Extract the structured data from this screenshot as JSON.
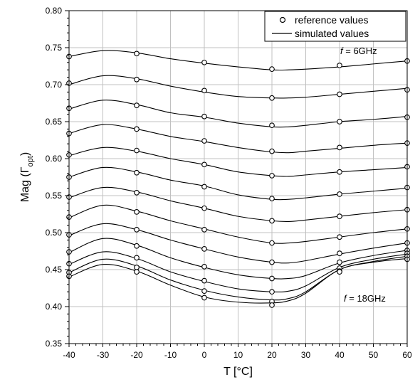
{
  "chart_data": {
    "type": "line",
    "xlabel": "T [°C]",
    "ylabel": "Mag (Γopt)",
    "ylabel_main": "Mag (Γ",
    "ylabel_sub": "opt",
    "ylabel_close": ")",
    "xlim": [
      -40,
      60
    ],
    "ylim": [
      0.35,
      0.8
    ],
    "xticks": [
      -40,
      -30,
      -20,
      -10,
      0,
      10,
      20,
      30,
      40,
      50,
      60
    ],
    "yticks": [
      0.35,
      0.4,
      0.45,
      0.5,
      0.55,
      0.6,
      0.65,
      0.7,
      0.75,
      0.8
    ],
    "xtick_labels": [
      "-40",
      "-30",
      "-20",
      "-10",
      "0",
      "10",
      "20",
      "30",
      "40",
      "50",
      "60"
    ],
    "ytick_labels": [
      "0.35",
      "0.40",
      "0.45",
      "0.50",
      "0.55",
      "0.60",
      "0.65",
      "0.70",
      "0.75",
      "0.80"
    ],
    "grid": true,
    "legend_position": "top-right",
    "legend": {
      "reference": "reference values",
      "simulated": "simulated values"
    },
    "annotations": {
      "top_f": "f",
      "top_rest": " = 6GHz",
      "bottom_f": "f",
      "bottom_rest": " = 18GHz"
    },
    "reference_x": [
      -40,
      -20,
      0,
      20,
      40,
      60
    ],
    "series": [
      {
        "sim_x": [
          -40,
          -30,
          -20,
          -10,
          0,
          10,
          20,
          25,
          30,
          40,
          50,
          60
        ],
        "sim_y": [
          0.738,
          0.746,
          0.743,
          0.735,
          0.729,
          0.724,
          0.72,
          0.72,
          0.721,
          0.724,
          0.728,
          0.732
        ],
        "ref_y": [
          0.738,
          0.742,
          0.73,
          0.721,
          0.726,
          0.732
        ]
      },
      {
        "sim_x": [
          -40,
          -30,
          -20,
          -10,
          0,
          10,
          20,
          25,
          30,
          40,
          50,
          60
        ],
        "sim_y": [
          0.7,
          0.712,
          0.708,
          0.698,
          0.69,
          0.684,
          0.682,
          0.682,
          0.683,
          0.687,
          0.691,
          0.695
        ],
        "ref_y": [
          0.702,
          0.707,
          0.692,
          0.682,
          0.687,
          0.693
        ]
      },
      {
        "sim_x": [
          -40,
          -30,
          -20,
          -10,
          0,
          10,
          20,
          25,
          30,
          40,
          50,
          60
        ],
        "sim_y": [
          0.667,
          0.679,
          0.673,
          0.662,
          0.656,
          0.648,
          0.643,
          0.643,
          0.645,
          0.65,
          0.653,
          0.657
        ],
        "ref_y": [
          0.668,
          0.672,
          0.657,
          0.645,
          0.65,
          0.656
        ]
      },
      {
        "sim_x": [
          -40,
          -30,
          -20,
          -10,
          0,
          10,
          20,
          25,
          30,
          40,
          50,
          60
        ],
        "sim_y": [
          0.634,
          0.646,
          0.64,
          0.63,
          0.623,
          0.615,
          0.609,
          0.608,
          0.61,
          0.614,
          0.618,
          0.621
        ],
        "ref_y": [
          0.634,
          0.64,
          0.624,
          0.61,
          0.615,
          0.621
        ]
      },
      {
        "sim_x": [
          -40,
          -30,
          -20,
          -10,
          0,
          10,
          20,
          25,
          30,
          40,
          50,
          60
        ],
        "sim_y": [
          0.604,
          0.615,
          0.61,
          0.6,
          0.592,
          0.582,
          0.577,
          0.576,
          0.578,
          0.582,
          0.585,
          0.588
        ],
        "ref_y": [
          0.605,
          0.611,
          0.592,
          0.577,
          0.582,
          0.589
        ]
      },
      {
        "sim_x": [
          -40,
          -30,
          -20,
          -10,
          0,
          10,
          20,
          25,
          30,
          40,
          50,
          60
        ],
        "sim_y": [
          0.575,
          0.588,
          0.582,
          0.571,
          0.563,
          0.551,
          0.545,
          0.545,
          0.547,
          0.552,
          0.556,
          0.56
        ],
        "ref_y": [
          0.575,
          0.581,
          0.562,
          0.546,
          0.552,
          0.561
        ]
      },
      {
        "sim_x": [
          -40,
          -30,
          -20,
          -10,
          0,
          10,
          20,
          25,
          30,
          40,
          50,
          60
        ],
        "sim_y": [
          0.547,
          0.561,
          0.555,
          0.543,
          0.533,
          0.522,
          0.516,
          0.515,
          0.517,
          0.522,
          0.527,
          0.531
        ],
        "ref_y": [
          0.548,
          0.554,
          0.533,
          0.516,
          0.522,
          0.531
        ]
      },
      {
        "sim_x": [
          -40,
          -30,
          -20,
          -10,
          0,
          10,
          20,
          25,
          30,
          40,
          50,
          60
        ],
        "sim_y": [
          0.52,
          0.537,
          0.529,
          0.516,
          0.505,
          0.494,
          0.486,
          0.486,
          0.488,
          0.494,
          0.5,
          0.505
        ],
        "ref_y": [
          0.521,
          0.528,
          0.504,
          0.486,
          0.494,
          0.505
        ]
      },
      {
        "sim_x": [
          -40,
          -30,
          -20,
          -10,
          0,
          10,
          20,
          25,
          30,
          40,
          50,
          60
        ],
        "sim_y": [
          0.496,
          0.512,
          0.504,
          0.49,
          0.478,
          0.467,
          0.46,
          0.459,
          0.462,
          0.471,
          0.479,
          0.486
        ],
        "ref_y": [
          0.497,
          0.504,
          0.478,
          0.46,
          0.472,
          0.486
        ]
      },
      {
        "sim_x": [
          -40,
          -30,
          -20,
          -10,
          0,
          10,
          20,
          25,
          30,
          40,
          50,
          60
        ],
        "sim_y": [
          0.473,
          0.492,
          0.483,
          0.466,
          0.453,
          0.443,
          0.438,
          0.438,
          0.442,
          0.459,
          0.469,
          0.476
        ],
        "ref_y": [
          0.474,
          0.482,
          0.454,
          0.438,
          0.46,
          0.476
        ]
      },
      {
        "sim_x": [
          -40,
          -30,
          -20,
          -10,
          0,
          10,
          20,
          25,
          30,
          40,
          50,
          60
        ],
        "sim_y": [
          0.457,
          0.474,
          0.465,
          0.447,
          0.434,
          0.424,
          0.42,
          0.421,
          0.428,
          0.453,
          0.464,
          0.471
        ],
        "ref_y": [
          0.458,
          0.466,
          0.435,
          0.42,
          0.452,
          0.472
        ]
      },
      {
        "sim_x": [
          -40,
          -30,
          -20,
          -10,
          0,
          10,
          20,
          25,
          30,
          40,
          50,
          60
        ],
        "sim_y": [
          0.446,
          0.464,
          0.455,
          0.436,
          0.422,
          0.413,
          0.409,
          0.411,
          0.42,
          0.45,
          0.461,
          0.468
        ],
        "ref_y": [
          0.446,
          0.453,
          0.421,
          0.407,
          0.448,
          0.468
        ]
      },
      {
        "sim_x": [
          -40,
          -30,
          -20,
          -10,
          0,
          10,
          20,
          25,
          30,
          40,
          50,
          60
        ],
        "sim_y": [
          0.44,
          0.457,
          0.448,
          0.429,
          0.413,
          0.406,
          0.405,
          0.408,
          0.418,
          0.45,
          0.46,
          0.465
        ],
        "ref_y": [
          0.441,
          0.447,
          0.412,
          0.402,
          0.447,
          0.464
        ]
      }
    ]
  }
}
